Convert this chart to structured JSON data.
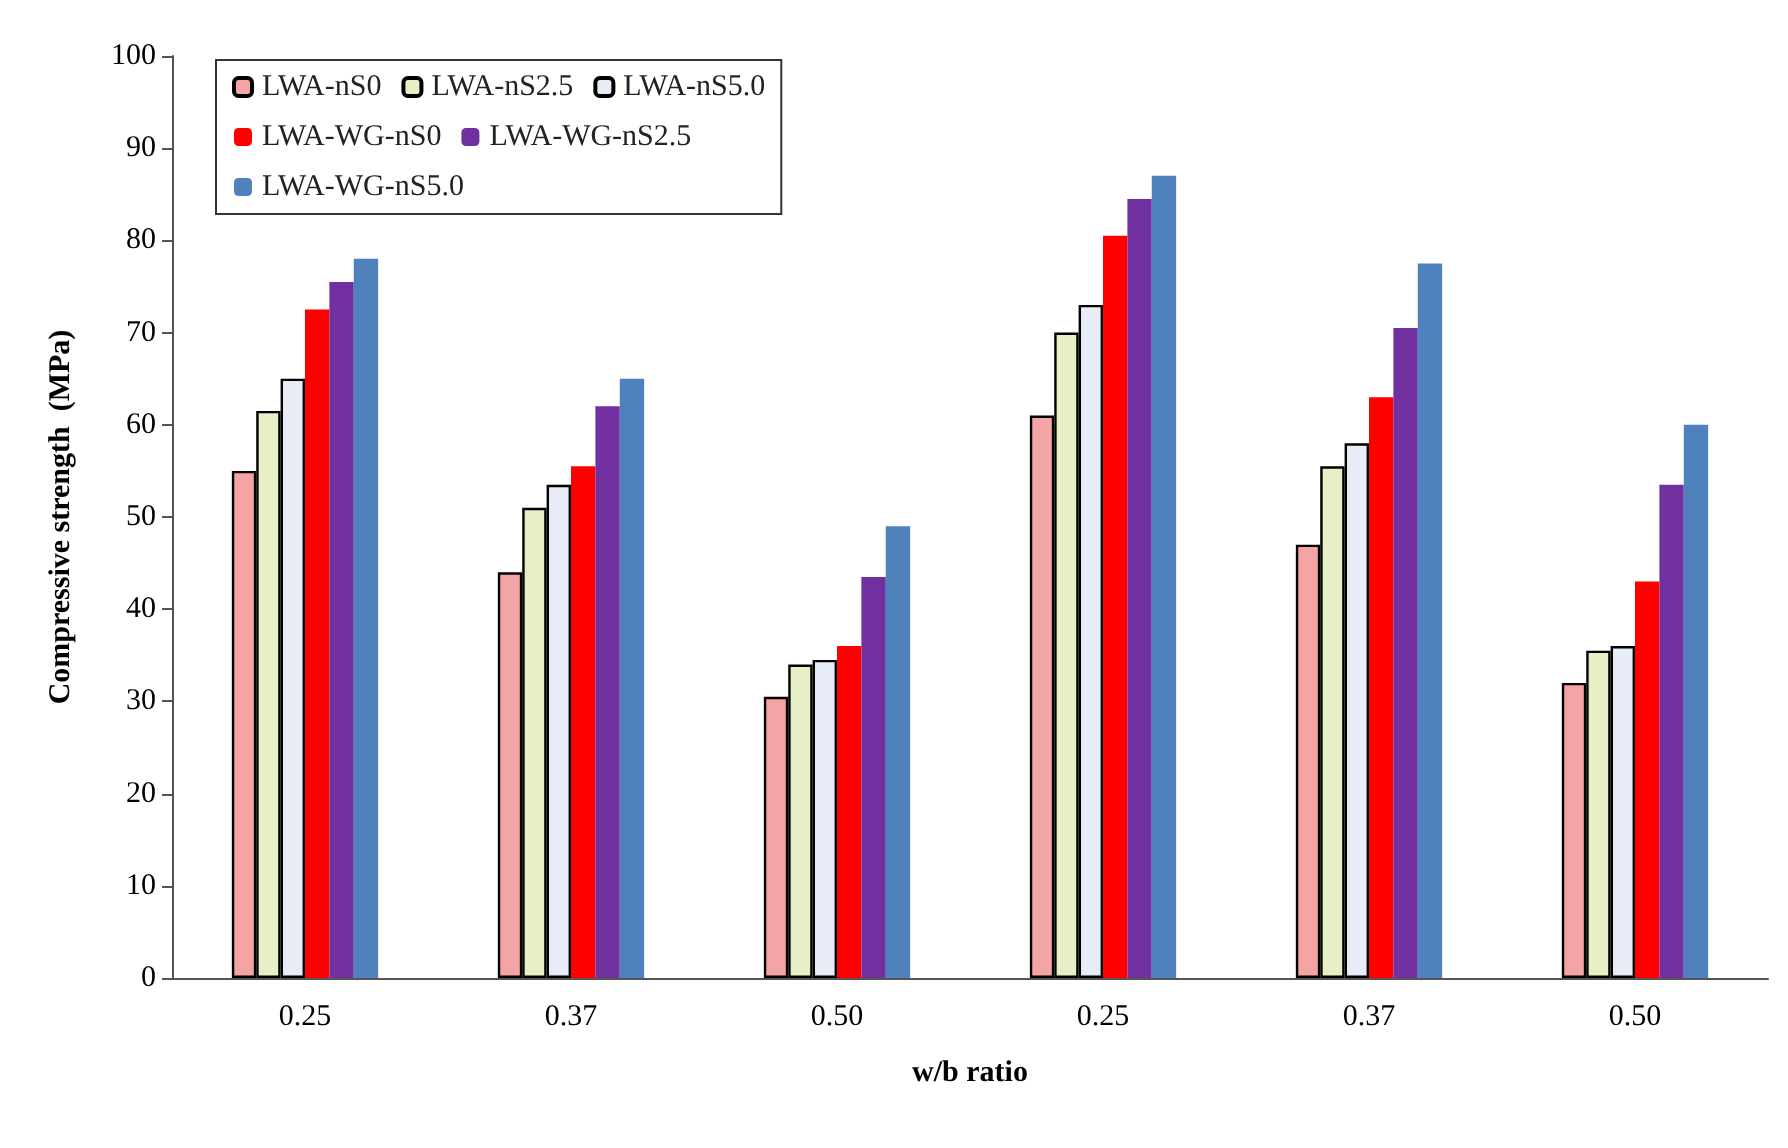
{
  "chart_data": {
    "type": "bar",
    "xlabel": "w/b ratio",
    "ylabel": "Compressive strength  (MPa)",
    "categories": [
      "0.25",
      "0.37",
      "0.50",
      "0.25",
      "0.37",
      "0.50"
    ],
    "series": [
      {
        "name": "LWA-nS0",
        "color": "#f4a4a4",
        "values": [
          55,
          44,
          30.5,
          61,
          47,
          32
        ]
      },
      {
        "name": "LWA-nS2.5",
        "color": "#e6efc6",
        "values": [
          61.5,
          51,
          34,
          70,
          55.5,
          35.5
        ]
      },
      {
        "name": "LWA-nS5.0",
        "color": "#e8ecf6",
        "values": [
          65,
          53.5,
          34.5,
          73,
          58,
          36
        ]
      },
      {
        "name": "LWA-WG-nS0",
        "color": "#ff0000",
        "values": [
          72.5,
          55.5,
          36,
          80.5,
          63,
          43
        ]
      },
      {
        "name": "LWA-WG-nS2.5",
        "color": "#7030a0",
        "values": [
          75.5,
          62,
          43.5,
          84.5,
          70.5,
          53.5
        ]
      },
      {
        "name": "LWA-WG-nS5.0",
        "color": "#4f81bd",
        "values": [
          78,
          65,
          49,
          87,
          77.5,
          60
        ]
      }
    ],
    "ylim": [
      0,
      100
    ],
    "yticks": [
      0,
      10,
      20,
      30,
      40,
      50,
      60,
      70,
      80,
      90,
      100
    ],
    "grid": false,
    "legend": "top left"
  }
}
